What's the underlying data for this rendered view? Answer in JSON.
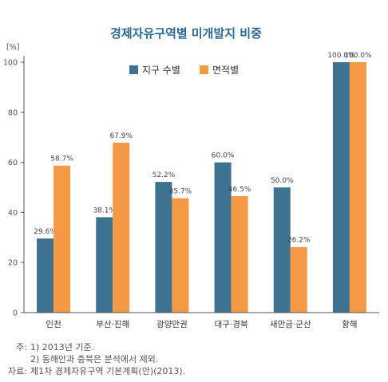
{
  "chart_data": {
    "type": "bar",
    "title": "경제자유구역별 미개발지 비중",
    "ylabel": "[%]",
    "ylim": [
      0,
      100
    ],
    "yticks": [
      0,
      20,
      40,
      60,
      80,
      100
    ],
    "grid": false,
    "legend_position": "top",
    "categories": [
      "인천",
      "부산·진해",
      "광양만권",
      "대구·경북",
      "새만금·군산",
      "황해"
    ],
    "series": [
      {
        "name": "지구 수별",
        "color": "#3d7291",
        "values": [
          29.6,
          38.1,
          52.2,
          60.0,
          50.0,
          100.0
        ],
        "labels": [
          "29.6%",
          "38.1%",
          "52.2%",
          "60.0%",
          "50.0%",
          "100.0%"
        ]
      },
      {
        "name": "면적별",
        "color": "#f59a44",
        "values": [
          58.7,
          67.9,
          45.7,
          46.5,
          26.2,
          100.0
        ],
        "labels": [
          "58.7%",
          "67.9%",
          "45.7%",
          "46.5%",
          "26.2%",
          "100.0%"
        ]
      }
    ]
  },
  "colors": {
    "title": "#2f6a8f",
    "axis": "#555555"
  },
  "notes": [
    {
      "prefix": "주:",
      "text": "1) 2013년 기준."
    },
    {
      "prefix": "",
      "text": "2) 동해안과 충북은 분석에서 제외."
    },
    {
      "prefix": "자료:",
      "text": "제1차 경제자유구역 기본계획(안)(2013)."
    }
  ]
}
